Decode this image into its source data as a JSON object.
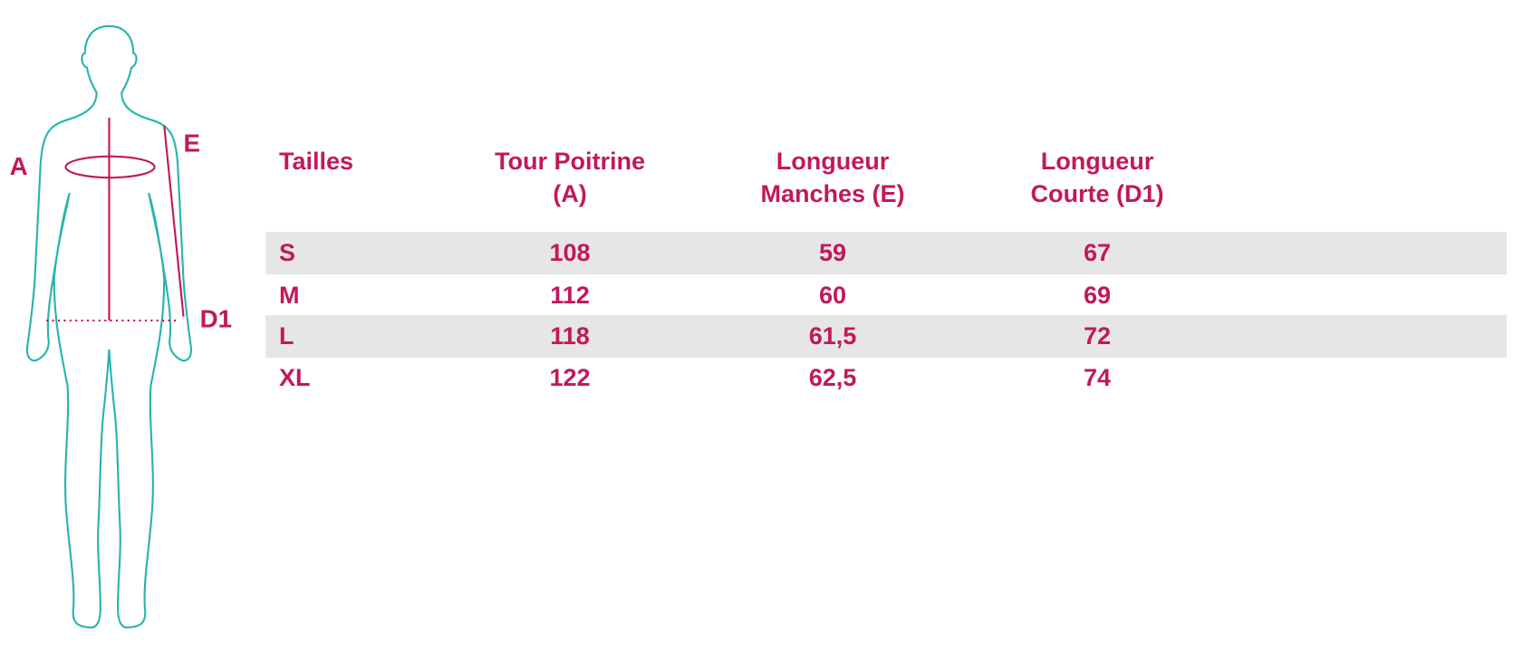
{
  "figure": {
    "labels": [
      "A",
      "E",
      "D1"
    ]
  },
  "table": {
    "headers": [
      [
        "Tailles"
      ],
      [
        "Tour Poitrine",
        "(A)"
      ],
      [
        "Longueur",
        "Manches (E)"
      ],
      [
        "Longueur",
        "Courte (D1)"
      ]
    ],
    "rows": [
      [
        "S",
        "108",
        "59",
        "67"
      ],
      [
        "M",
        "112",
        "60",
        "69"
      ],
      [
        "L",
        "118",
        "61,5",
        "72"
      ],
      [
        "XL",
        "122",
        "62,5",
        "74"
      ]
    ]
  }
}
